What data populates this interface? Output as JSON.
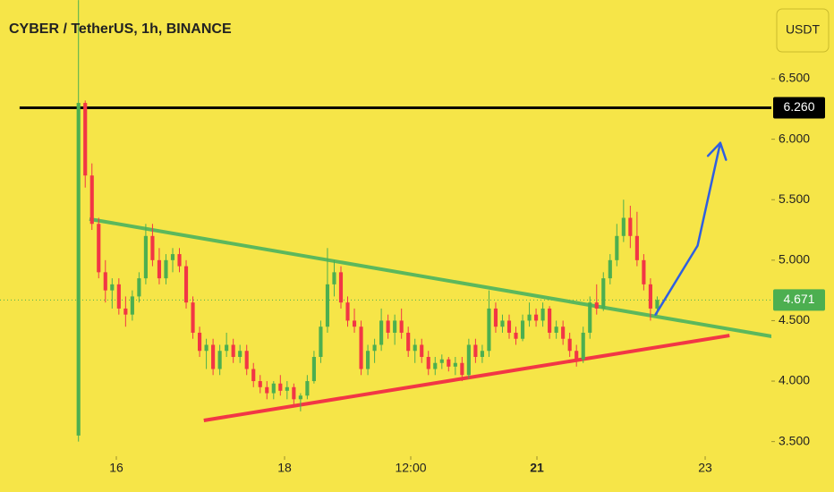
{
  "chart_data": {
    "type": "candlestick",
    "title": "CYBER / TetherUS, 1h, BINANCE",
    "currency": "USDT",
    "up_color": "#4caf50",
    "down_color": "#f23645",
    "xlim": [
      14.617,
      23.787
    ],
    "xticks": [
      16,
      18,
      {
        "value": 19.5,
        "label": "12:00"
      },
      21,
      23
    ],
    "ylim": [
      3.379,
      7.151
    ],
    "yticks": [
      {
        "value": 3.5,
        "label": "3.500"
      },
      {
        "value": 4,
        "label": "4.000"
      },
      {
        "value": 4.5,
        "label": "4.500"
      },
      {
        "value": 5,
        "label": "5.000"
      },
      {
        "value": 5.5,
        "label": "5.500"
      },
      {
        "value": 6,
        "label": "6.000"
      },
      {
        "value": 6.5,
        "label": "6.500"
      }
    ],
    "grid": false,
    "x": [
      15.55,
      15.63,
      15.71,
      15.79,
      15.87,
      15.95,
      16.03,
      16.11,
      16.19,
      16.27,
      16.35,
      16.43,
      16.51,
      16.59,
      16.67,
      16.75,
      16.83,
      16.91,
      16.99,
      17.07,
      17.15,
      17.23,
      17.31,
      17.39,
      17.47,
      17.55,
      17.63,
      17.71,
      17.79,
      17.87,
      17.95,
      18.03,
      18.11,
      18.19,
      18.27,
      18.35,
      18.43,
      18.51,
      18.59,
      18.67,
      18.75,
      18.83,
      18.91,
      18.99,
      19.07,
      19.15,
      19.23,
      19.31,
      19.39,
      19.47,
      19.55,
      19.63,
      19.71,
      19.79,
      19.87,
      19.95,
      20.03,
      20.11,
      20.19,
      20.27,
      20.35,
      20.43,
      20.51,
      20.59,
      20.67,
      20.75,
      20.83,
      20.91,
      20.99,
      21.07,
      21.15,
      21.23,
      21.31,
      21.39,
      21.47,
      21.55,
      21.63,
      21.71,
      21.79,
      21.87,
      21.95,
      22.03,
      22.11,
      22.19,
      22.27,
      22.35,
      22.43
    ],
    "open": [
      3.55,
      6.3,
      5.7,
      5.3,
      4.9,
      4.75,
      4.8,
      4.6,
      4.55,
      4.7,
      4.85,
      5.2,
      5.0,
      4.85,
      5.0,
      5.05,
      4.95,
      4.65,
      4.4,
      4.25,
      4.3,
      4.1,
      4.25,
      4.3,
      4.2,
      4.25,
      4.1,
      4.0,
      3.95,
      3.9,
      3.98,
      3.92,
      3.95,
      3.85,
      3.88,
      4.0,
      4.2,
      4.45,
      4.8,
      4.9,
      4.65,
      4.5,
      4.45,
      4.1,
      4.25,
      4.3,
      4.5,
      4.4,
      4.5,
      4.4,
      4.25,
      4.3,
      4.2,
      4.1,
      4.15,
      4.18,
      4.12,
      4.15,
      4.05,
      4.3,
      4.2,
      4.25,
      4.6,
      4.45,
      4.5,
      4.4,
      4.35,
      4.5,
      4.55,
      4.5,
      4.6,
      4.4,
      4.45,
      4.35,
      4.25,
      4.18,
      4.4,
      4.65,
      4.6,
      4.85,
      5.0,
      5.2,
      5.35,
      5.2,
      5.0,
      4.8,
      4.6
    ],
    "high": [
      7.15,
      6.32,
      5.8,
      5.35,
      5.0,
      4.85,
      4.85,
      4.7,
      4.75,
      4.9,
      5.3,
      5.3,
      5.1,
      5.05,
      5.1,
      5.1,
      5.0,
      4.7,
      4.45,
      4.35,
      4.35,
      4.3,
      4.4,
      4.35,
      4.3,
      4.3,
      4.15,
      4.05,
      4.0,
      4.0,
      4.05,
      4.0,
      3.98,
      3.9,
      4.05,
      4.25,
      4.5,
      5.1,
      5.0,
      4.95,
      4.7,
      4.6,
      4.5,
      4.3,
      4.35,
      4.6,
      4.55,
      4.55,
      4.6,
      4.45,
      4.35,
      4.35,
      4.25,
      4.2,
      4.22,
      4.2,
      4.2,
      4.2,
      4.35,
      4.35,
      4.3,
      4.75,
      4.65,
      4.55,
      4.55,
      4.45,
      4.55,
      4.65,
      4.6,
      4.65,
      4.62,
      4.5,
      4.5,
      4.4,
      4.3,
      4.45,
      4.7,
      4.8,
      4.9,
      5.05,
      5.3,
      5.5,
      5.45,
      5.4,
      5.05,
      4.85,
      4.7
    ],
    "low": [
      3.5,
      5.6,
      5.25,
      4.85,
      4.65,
      4.6,
      4.55,
      4.45,
      4.5,
      4.65,
      4.8,
      4.95,
      4.8,
      4.8,
      4.9,
      4.9,
      4.6,
      4.35,
      4.2,
      4.1,
      4.05,
      4.05,
      4.2,
      4.15,
      4.15,
      4.05,
      3.95,
      3.9,
      3.85,
      3.85,
      3.88,
      3.85,
      3.8,
      3.75,
      3.85,
      3.98,
      4.15,
      4.4,
      4.7,
      4.6,
      4.45,
      4.4,
      4.05,
      4.05,
      4.15,
      4.25,
      4.35,
      4.3,
      4.35,
      4.2,
      4.15,
      4.15,
      4.05,
      4.05,
      4.1,
      4.08,
      4.05,
      4.0,
      4.02,
      4.15,
      4.15,
      4.2,
      4.4,
      4.4,
      4.35,
      4.3,
      4.33,
      4.45,
      4.45,
      4.45,
      4.35,
      4.35,
      4.3,
      4.2,
      4.12,
      4.15,
      4.35,
      4.55,
      4.58,
      4.8,
      4.95,
      5.15,
      5.1,
      4.95,
      4.75,
      4.5,
      4.55
    ],
    "close": [
      6.3,
      5.7,
      5.3,
      4.9,
      4.75,
      4.8,
      4.6,
      4.55,
      4.7,
      4.85,
      5.2,
      5.0,
      4.85,
      5.0,
      5.05,
      4.95,
      4.65,
      4.4,
      4.25,
      4.3,
      4.1,
      4.25,
      4.3,
      4.2,
      4.25,
      4.1,
      4.0,
      3.95,
      3.9,
      3.98,
      3.92,
      3.95,
      3.85,
      3.88,
      4.0,
      4.2,
      4.45,
      4.8,
      4.9,
      4.65,
      4.5,
      4.45,
      4.1,
      4.25,
      4.3,
      4.5,
      4.4,
      4.5,
      4.4,
      4.25,
      4.3,
      4.2,
      4.1,
      4.15,
      4.18,
      4.12,
      4.15,
      4.05,
      4.3,
      4.2,
      4.25,
      4.6,
      4.45,
      4.5,
      4.4,
      4.35,
      4.5,
      4.55,
      4.5,
      4.6,
      4.4,
      4.45,
      4.35,
      4.25,
      4.18,
      4.4,
      4.65,
      4.6,
      4.85,
      5.0,
      5.2,
      5.35,
      5.2,
      5.0,
      4.8,
      4.6,
      4.671
    ],
    "price_lines": [
      {
        "value": 6.26,
        "label": "6.260",
        "color": "#000000",
        "style": "solid",
        "x_start": 14.85
      },
      {
        "value": 4.671,
        "label": "4.671",
        "color": "#4caf50",
        "style": "dotted"
      }
    ],
    "trendlines": [
      {
        "color": "#5cb85c",
        "x": [
          15.68,
          23.79
        ],
        "y": [
          5.34,
          4.37
        ]
      },
      {
        "color": "#f23645",
        "x": [
          17.04,
          23.29
        ],
        "y": [
          3.675,
          4.377
        ]
      }
    ],
    "arrow": {
      "color": "#2f5fe0",
      "x": [
        22.41,
        22.91,
        23.18
      ],
      "y": [
        4.55,
        5.12,
        5.97
      ]
    }
  }
}
